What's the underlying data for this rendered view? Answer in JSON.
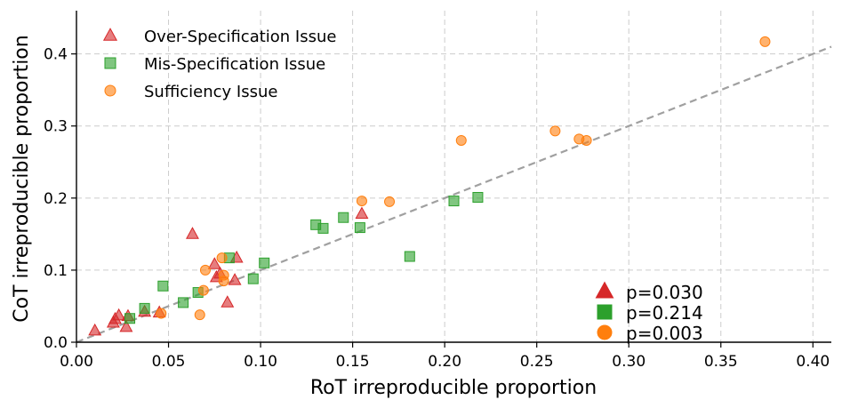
{
  "chart_data": {
    "type": "scatter",
    "xlabel": "RoT irreproducible proportion",
    "ylabel": "CoT irreproducible proportion",
    "xlim": [
      0.0,
      0.41
    ],
    "ylim": [
      0.0,
      0.46
    ],
    "xticks": [
      0.0,
      0.05,
      0.1,
      0.15,
      0.2,
      0.25,
      0.3,
      0.35,
      0.4
    ],
    "xtick_labels": [
      "0.00",
      "0.05",
      "0.10",
      "0.15",
      "0.20",
      "0.25",
      "0.30",
      "0.35",
      "0.40"
    ],
    "yticks": [
      0.0,
      0.1,
      0.2,
      0.3,
      0.4
    ],
    "ytick_labels": [
      "0.0",
      "0.1",
      "0.2",
      "0.3",
      "0.4"
    ],
    "grid": true,
    "reference_line": {
      "label": "y = x",
      "color": "#a0a0a0",
      "style": "dashed"
    },
    "legend_position": "top-left",
    "series": [
      {
        "name": "Over-Specification Issue",
        "marker": "triangle",
        "color": "#d62728",
        "p_label": "p=0.030",
        "points": [
          [
            0.01,
            0.016
          ],
          [
            0.02,
            0.027
          ],
          [
            0.021,
            0.032
          ],
          [
            0.023,
            0.037
          ],
          [
            0.027,
            0.021
          ],
          [
            0.028,
            0.036
          ],
          [
            0.037,
            0.042
          ],
          [
            0.045,
            0.041
          ],
          [
            0.063,
            0.15
          ],
          [
            0.075,
            0.108
          ],
          [
            0.076,
            0.09
          ],
          [
            0.078,
            0.095
          ],
          [
            0.082,
            0.055
          ],
          [
            0.086,
            0.086
          ],
          [
            0.087,
            0.117
          ],
          [
            0.155,
            0.178
          ]
        ]
      },
      {
        "name": "Mis-Specification Issue",
        "marker": "square",
        "color": "#2ca02c",
        "p_label": "p=0.214",
        "points": [
          [
            0.029,
            0.033
          ],
          [
            0.037,
            0.047
          ],
          [
            0.047,
            0.078
          ],
          [
            0.058,
            0.055
          ],
          [
            0.066,
            0.069
          ],
          [
            0.083,
            0.117
          ],
          [
            0.096,
            0.088
          ],
          [
            0.102,
            0.11
          ],
          [
            0.13,
            0.163
          ],
          [
            0.134,
            0.158
          ],
          [
            0.145,
            0.173
          ],
          [
            0.154,
            0.159
          ],
          [
            0.181,
            0.119
          ],
          [
            0.205,
            0.196
          ],
          [
            0.218,
            0.201
          ]
        ]
      },
      {
        "name": "Sufficiency Issue",
        "marker": "circle",
        "color": "#ff7f0e",
        "p_label": "p=0.003",
        "points": [
          [
            0.046,
            0.04
          ],
          [
            0.067,
            0.038
          ],
          [
            0.069,
            0.072
          ],
          [
            0.07,
            0.1
          ],
          [
            0.079,
            0.117
          ],
          [
            0.08,
            0.093
          ],
          [
            0.08,
            0.085
          ],
          [
            0.155,
            0.196
          ],
          [
            0.17,
            0.195
          ],
          [
            0.209,
            0.28
          ],
          [
            0.26,
            0.293
          ],
          [
            0.273,
            0.282
          ],
          [
            0.277,
            0.28
          ],
          [
            0.374,
            0.417
          ]
        ]
      }
    ]
  }
}
